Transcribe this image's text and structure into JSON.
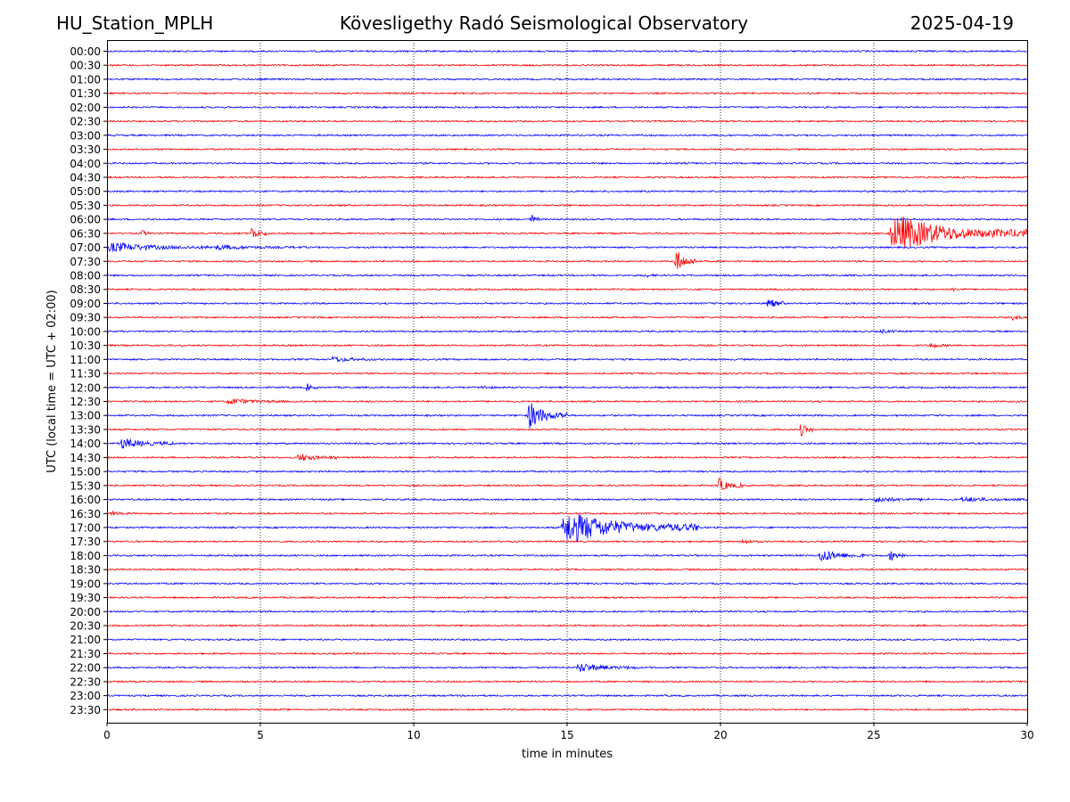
{
  "header": {
    "station": "HU_Station_MPLH",
    "observatory": "Kövesligethy Radó Seismological Observatory",
    "date": "2025-04-19"
  },
  "colors": {
    "odd_trace": "#0000ff",
    "even_trace": "#ff0000",
    "grid": "#000000"
  },
  "chart_data": {
    "type": "line",
    "title": "Kövesligethy Radó Seismological Observatory",
    "xlabel": "time in minutes",
    "ylabel": "UTC (local time = UTC + 02:00)",
    "xlim": [
      0,
      30
    ],
    "x_ticks": [
      "0",
      "5",
      "10",
      "15",
      "20",
      "25",
      "30"
    ],
    "x_tick_values": [
      0,
      5,
      10,
      15,
      20,
      25,
      30
    ],
    "grid": "vertical dotted at 5-minute ticks",
    "row_labels": [
      "00:00",
      "00:30",
      "01:00",
      "01:30",
      "02:00",
      "02:30",
      "03:00",
      "03:30",
      "04:00",
      "04:30",
      "05:00",
      "05:30",
      "06:00",
      "06:30",
      "07:00",
      "07:30",
      "08:00",
      "08:30",
      "09:00",
      "09:30",
      "10:00",
      "10:30",
      "11:00",
      "11:30",
      "12:00",
      "12:30",
      "13:00",
      "13:30",
      "14:00",
      "14:30",
      "15:00",
      "15:30",
      "16:00",
      "16:30",
      "17:00",
      "17:30",
      "18:00",
      "18:30",
      "19:00",
      "19:30",
      "20:00",
      "20:30",
      "21:00",
      "21:30",
      "22:00",
      "22:30",
      "23:00",
      "23:30"
    ],
    "trace_colors": [
      "blue",
      "red"
    ],
    "events": [
      {
        "row": "06:00",
        "start_min": 13.8,
        "duration_min": 0.3,
        "amp": 0.9
      },
      {
        "row": "06:30",
        "start_min": 1.1,
        "duration_min": 0.3,
        "amp": 0.6
      },
      {
        "row": "06:30",
        "start_min": 4.7,
        "duration_min": 0.5,
        "amp": 1.0
      },
      {
        "row": "06:30",
        "start_min": 25.5,
        "duration_min": 4.5,
        "amp": 2.5
      },
      {
        "row": "07:00",
        "start_min": 0.0,
        "duration_min": 3.5,
        "amp": 0.6
      },
      {
        "row": "07:00",
        "start_min": 3.5,
        "duration_min": 3.0,
        "amp": 0.25
      },
      {
        "row": "07:30",
        "start_min": 18.5,
        "duration_min": 0.7,
        "amp": 1.8
      },
      {
        "row": "08:00",
        "start_min": 17.5,
        "duration_min": 0.6,
        "amp": 0.2
      },
      {
        "row": "08:30",
        "start_min": 27.5,
        "duration_min": 0.5,
        "amp": 0.2
      },
      {
        "row": "09:00",
        "start_min": 21.5,
        "duration_min": 0.6,
        "amp": 0.9
      },
      {
        "row": "09:30",
        "start_min": 29.5,
        "duration_min": 0.5,
        "amp": 0.3
      },
      {
        "row": "10:00",
        "start_min": 25.2,
        "duration_min": 0.5,
        "amp": 0.25
      },
      {
        "row": "10:30",
        "start_min": 26.8,
        "duration_min": 0.7,
        "amp": 0.35
      },
      {
        "row": "11:00",
        "start_min": 7.3,
        "duration_min": 1.4,
        "amp": 0.35
      },
      {
        "row": "12:00",
        "start_min": 6.5,
        "duration_min": 0.4,
        "amp": 0.5
      },
      {
        "row": "12:00",
        "start_min": 12.2,
        "duration_min": 0.5,
        "amp": 0.25
      },
      {
        "row": "12:30",
        "start_min": 3.9,
        "duration_min": 1.9,
        "amp": 0.35
      },
      {
        "row": "13:00",
        "start_min": 13.7,
        "duration_min": 1.3,
        "amp": 1.9
      },
      {
        "row": "13:30",
        "start_min": 22.6,
        "duration_min": 0.4,
        "amp": 1.0
      },
      {
        "row": "14:00",
        "start_min": 0.4,
        "duration_min": 1.8,
        "amp": 0.7
      },
      {
        "row": "14:30",
        "start_min": 6.2,
        "duration_min": 1.3,
        "amp": 0.5
      },
      {
        "row": "15:30",
        "start_min": 19.9,
        "duration_min": 0.8,
        "amp": 1.0
      },
      {
        "row": "16:00",
        "start_min": 25.0,
        "duration_min": 1.8,
        "amp": 0.35
      },
      {
        "row": "16:00",
        "start_min": 27.8,
        "duration_min": 2.2,
        "amp": 0.3
      },
      {
        "row": "16:30",
        "start_min": 0.1,
        "duration_min": 0.8,
        "amp": 0.25
      },
      {
        "row": "17:00",
        "start_min": 14.8,
        "duration_min": 4.5,
        "amp": 2.2
      },
      {
        "row": "17:30",
        "start_min": 20.7,
        "duration_min": 0.6,
        "amp": 0.3
      },
      {
        "row": "18:00",
        "start_min": 23.2,
        "duration_min": 1.5,
        "amp": 0.9
      },
      {
        "row": "18:00",
        "start_min": 25.5,
        "duration_min": 0.5,
        "amp": 0.8
      },
      {
        "row": "22:00",
        "start_min": 15.3,
        "duration_min": 2.0,
        "amp": 0.6
      }
    ]
  }
}
